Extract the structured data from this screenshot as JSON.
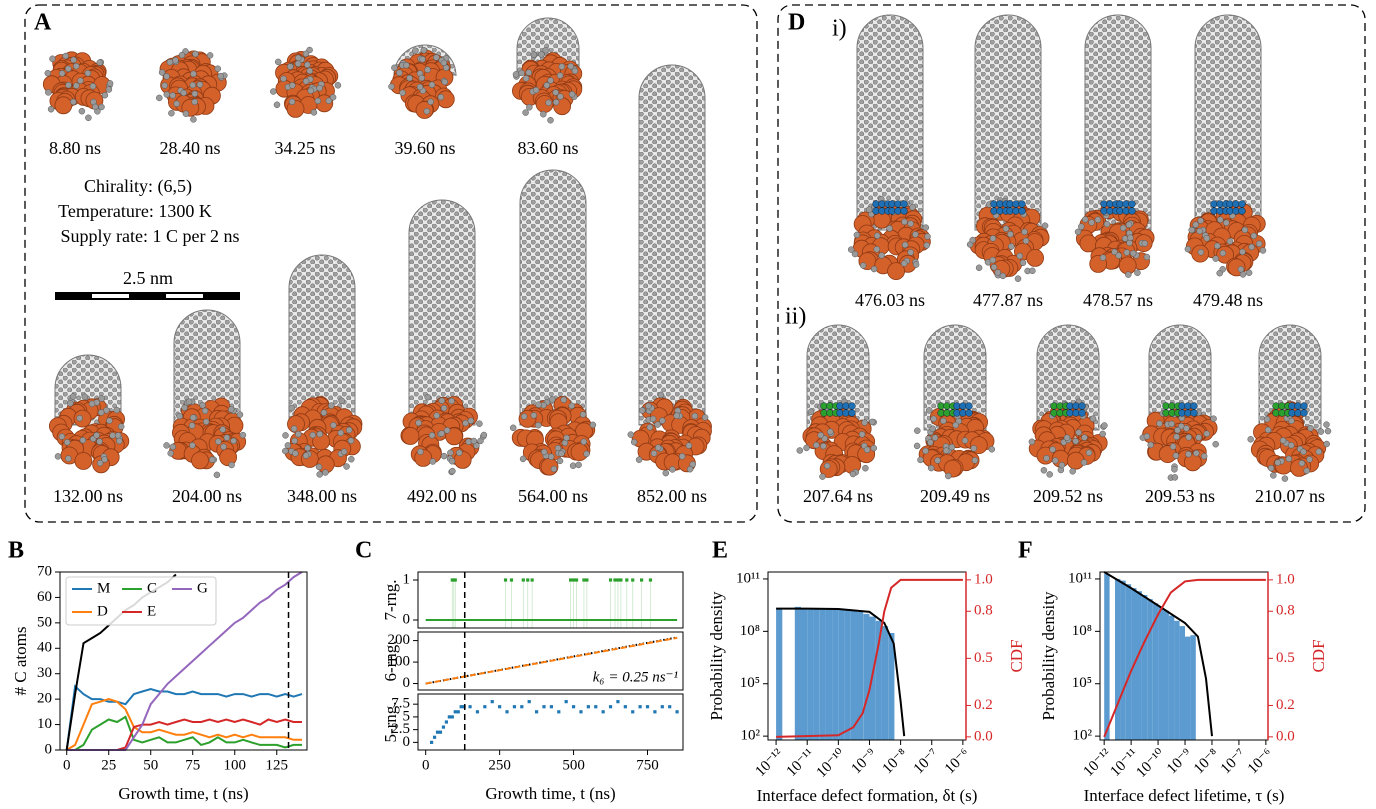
{
  "panel_a": {
    "label": "A",
    "top_times": [
      "8.80 ns",
      "28.40 ns",
      "34.25 ns",
      "39.60 ns",
      "83.60 ns"
    ],
    "bottom_times": [
      "132.00 ns",
      "204.00 ns",
      "348.00 ns",
      "492.00 ns",
      "564.00 ns",
      "852.00 ns"
    ],
    "info": [
      "Chirality: (6,5)",
      "Temperature: 1300 K",
      "Supply rate: 1 C per 2 ns"
    ],
    "scale_bar": "2.5 nm"
  },
  "panel_d": {
    "label": "D",
    "row_i": {
      "label": "i)",
      "times": [
        "476.03 ns",
        "477.87 ns",
        "478.57 ns",
        "479.48 ns"
      ]
    },
    "row_ii": {
      "label": "ii)",
      "times": [
        "207.64 ns",
        "209.49 ns",
        "209.52 ns",
        "209.53 ns",
        "210.07 ns"
      ]
    }
  },
  "chart_data": [
    {
      "type": "line",
      "panel": "B",
      "xlabel": "Growth time, t (ns)",
      "ylabel": "# C atoms",
      "x": [
        0,
        5,
        10,
        15,
        20,
        25,
        30,
        35,
        40,
        45,
        50,
        55,
        60,
        65,
        70,
        75,
        80,
        85,
        90,
        95,
        100,
        105,
        110,
        115,
        120,
        125,
        130,
        135,
        140
      ],
      "xlim": [
        -4,
        143
      ],
      "xticks": [
        0,
        25,
        50,
        75,
        100,
        125
      ],
      "ylim": [
        0,
        70
      ],
      "yticks": [
        0,
        10,
        20,
        30,
        40,
        50,
        60,
        70
      ],
      "vline": 132,
      "legend": "upper left",
      "series": [
        {
          "name": "M",
          "color": "#1f77b4",
          "values": [
            0,
            25,
            22,
            20,
            20,
            19,
            19,
            18,
            22,
            23,
            24,
            23,
            23,
            22,
            22,
            23,
            22,
            22,
            22,
            21,
            22,
            22,
            21,
            22,
            22,
            21,
            22,
            21,
            22
          ]
        },
        {
          "name": "D",
          "color": "#ff7f0e",
          "values": [
            0,
            2,
            10,
            18,
            19,
            20,
            19,
            16,
            9,
            7,
            7,
            8,
            7,
            6,
            6,
            7,
            6,
            5,
            6,
            5,
            6,
            5,
            6,
            5,
            5,
            5,
            5,
            4,
            4
          ]
        },
        {
          "name": "C",
          "color": "#2ca02c",
          "values": [
            0,
            0,
            2,
            8,
            10,
            12,
            11,
            13,
            4,
            3,
            4,
            5,
            3,
            3,
            4,
            5,
            2,
            3,
            5,
            3,
            3,
            4,
            3,
            2,
            2,
            2,
            1,
            2,
            2
          ]
        },
        {
          "name": "E",
          "color": "#d62728",
          "values": [
            0,
            0,
            0,
            0,
            0,
            0,
            0,
            1,
            9,
            10,
            10,
            11,
            10,
            11,
            12,
            11,
            11,
            12,
            11,
            12,
            11,
            12,
            11,
            10,
            12,
            11,
            12,
            11,
            11
          ]
        },
        {
          "name": "G",
          "color": "#9467bd",
          "values": [
            0,
            0,
            0,
            0,
            0,
            0,
            0,
            0,
            5,
            10,
            18,
            22,
            26,
            29,
            32,
            35,
            38,
            41,
            44,
            47,
            50,
            52,
            55,
            58,
            60,
            63,
            65,
            68,
            70
          ]
        },
        {
          "color": "#000000",
          "values": [
            0,
            22,
            42,
            44,
            46,
            49,
            52,
            55,
            57,
            60,
            62,
            64,
            66,
            69,
            null,
            null,
            null,
            null,
            null,
            null,
            null,
            null,
            null,
            null,
            null,
            null,
            null,
            null,
            null
          ]
        }
      ]
    },
    {
      "type": "scatter",
      "panel": "C",
      "xlabel": "Growth time, t (ns)",
      "xlim": [
        -26,
        870
      ],
      "xticks": [
        0,
        250,
        500,
        750
      ],
      "vline": 132,
      "subplots": [
        {
          "ylabel": "7-rng.",
          "ylim": [
            -0.2,
            1.2
          ],
          "yticks": [
            0,
            1
          ],
          "series": [
            {
              "color": "#2ca02c",
              "style": "points",
              "x": [
                90,
                95,
                100,
                270,
                290,
                330,
                345,
                360,
                490,
                500,
                510,
                535,
                545,
                625,
                640,
                650,
                660,
                680,
                700,
                730,
                760
              ],
              "values": [
                1,
                1,
                1,
                1,
                1,
                1,
                1,
                1,
                1,
                1,
                1,
                1,
                1,
                1,
                1,
                1,
                1,
                1,
                1,
                1,
                1
              ]
            },
            {
              "color": "#2ca02c",
              "style": "solid",
              "x": [
                0,
                850
              ],
              "values": [
                0,
                0
              ]
            }
          ]
        },
        {
          "ylabel": "6-rng.",
          "ylim": [
            -30,
            240
          ],
          "yticks": [
            0,
            100,
            200
          ],
          "annotation": "k₆ = 0.25 ns⁻¹",
          "series": [
            {
              "color": "#000000",
              "style": "dotted",
              "x": [
                0,
                850
              ],
              "values": [
                0,
                215
              ]
            },
            {
              "color": "#ff7f0e",
              "style": "dashed",
              "x": [
                0,
                850
              ],
              "values": [
                0,
                212.5
              ]
            }
          ]
        },
        {
          "ylabel": "5-rng.",
          "ylim": [
            -1.5,
            9.5
          ],
          "yticks": [
            0,
            2.5,
            5,
            7.5
          ],
          "series": [
            {
              "color": "#1f77b4",
              "style": "points",
              "x": [
                20,
                30,
                40,
                50,
                60,
                70,
                80,
                90,
                100,
                110,
                120,
                130,
                150,
                175,
                200,
                225,
                250,
                275,
                300,
                325,
                350,
                375,
                400,
                425,
                450,
                475,
                500,
                525,
                550,
                575,
                600,
                625,
                650,
                675,
                700,
                725,
                750,
                775,
                800,
                825,
                850
              ],
              "values": [
                0,
                1,
                2,
                2,
                3,
                4,
                5,
                5,
                6,
                6,
                7,
                7,
                7,
                6,
                7,
                8,
                7,
                6,
                7,
                7,
                8,
                6,
                7,
                7,
                6,
                8,
                7,
                6,
                7,
                7,
                6,
                7,
                8,
                7,
                6,
                7,
                7,
                6,
                7,
                7,
                6
              ]
            }
          ]
        }
      ]
    },
    {
      "type": "histogram",
      "panel": "E",
      "xlabel": "Interface defect formation, δt (s)",
      "ylabel": "Probability density",
      "y2label": "CDF",
      "xscale": "log",
      "yscale": "log",
      "xlim": [
        5.5e-13,
        1.26e-06
      ],
      "xticks": [
        {
          "value": 1e-12,
          "label": "10⁻¹²"
        },
        {
          "value": 1e-11,
          "label": "10⁻¹¹"
        },
        {
          "value": 1e-10,
          "label": "10⁻¹⁰"
        },
        {
          "value": 1e-09,
          "label": "10⁻⁹"
        },
        {
          "value": 1e-08,
          "label": "10⁻⁸"
        },
        {
          "value": 1e-07,
          "label": "10⁻⁷"
        },
        {
          "value": 1e-06,
          "label": "10⁻⁶"
        }
      ],
      "ylim": [
        60,
        250000000000.0
      ],
      "yticks": [
        {
          "value": 100,
          "label": "10²"
        },
        {
          "value": 100000.0,
          "label": "10⁵"
        },
        {
          "value": 100000000.0,
          "label": "10⁸"
        },
        {
          "value": 100000000000.0,
          "label": "10¹¹"
        }
      ],
      "y2lim": [
        -0.02,
        1.05
      ],
      "y2ticks": [
        {
          "value": 0,
          "label": "0.0"
        },
        0.2,
        0.5,
        0.8,
        {
          "value": 1,
          "label": "1.0"
        }
      ],
      "color": "#5b9bd0",
      "bins": [
        1e-12,
        1.585e-12,
        2.512e-12,
        3.981e-12,
        6.31e-12,
        1e-11,
        1.585e-11,
        2.512e-11,
        3.981e-11,
        6.31e-11,
        1e-10,
        1.585e-10,
        2.512e-10,
        3.981e-10,
        6.31e-10,
        1e-09,
        1.585e-09,
        2.512e-09,
        3.981e-09,
        6.31e-09
      ],
      "values": [
        2000000000.0,
        0,
        0,
        2500000000.0,
        2000000000.0,
        2000000000.0,
        2000000000.0,
        2000000000.0,
        2000000000.0,
        2000000000.0,
        2000000000.0,
        1800000000.0,
        1600000000.0,
        1300000000.0,
        1000000000.0,
        700000000.0,
        400000000.0,
        200000000.0,
        80000000.0
      ],
      "series": [
        {
          "color": "#000000",
          "x": [
            1e-12,
            1e-11,
            1e-10,
            1e-09,
            3e-09,
            6e-09,
            1e-08,
            1.3e-08
          ],
          "values": [
            2000000000.0,
            2000000000.0,
            1900000000.0,
            1300000000.0,
            300000000.0,
            20000000.0,
            10000.0,
            100
          ]
        },
        {
          "color": "#d62728",
          "axis": "y2",
          "x": [
            1e-12,
            1e-10,
            3e-10,
            6e-10,
            1e-09,
            2e-09,
            3e-09,
            5e-09,
            1e-08,
            1e-06
          ],
          "values": [
            0,
            0.01,
            0.06,
            0.15,
            0.3,
            0.6,
            0.8,
            0.95,
            1,
            1
          ]
        }
      ]
    },
    {
      "type": "histogram",
      "panel": "F",
      "xlabel": "Interface defect lifetime, τ (s)",
      "ylabel": "Probability density",
      "y2label": "CDF",
      "xscale": "log",
      "yscale": "log",
      "xlim": [
        7e-13,
        1.2e-06
      ],
      "xticks": [
        {
          "value": 1e-12,
          "label": "10⁻¹²"
        },
        {
          "value": 1e-11,
          "label": "10⁻¹¹"
        },
        {
          "value": 1e-10,
          "label": "10⁻¹⁰"
        },
        {
          "value": 1e-09,
          "label": "10⁻⁹"
        },
        {
          "value": 1e-08,
          "label": "10⁻⁸"
        },
        {
          "value": 1e-07,
          "label": "10⁻⁷"
        },
        {
          "value": 1e-06,
          "label": "10⁻⁶"
        }
      ],
      "ylim": [
        60,
        250000000000.0
      ],
      "yticks": [
        {
          "value": 100,
          "label": "10²"
        },
        {
          "value": 100000.0,
          "label": "10⁵"
        },
        {
          "value": 100000000.0,
          "label": "10⁸"
        },
        {
          "value": 100000000000.0,
          "label": "10¹¹"
        }
      ],
      "y2lim": [
        -0.02,
        1.05
      ],
      "y2ticks": [
        {
          "value": 0,
          "label": "0.0"
        },
        0.2,
        0.5,
        0.8,
        {
          "value": 1,
          "label": "1.0"
        }
      ],
      "color": "#5b9bd0",
      "bins": [
        1e-12,
        1.585e-12,
        2.512e-12,
        3.981e-12,
        6.31e-12,
        1e-11,
        1.585e-11,
        2.512e-11,
        3.981e-11,
        6.31e-11,
        1e-10,
        1.585e-10,
        2.512e-10,
        3.981e-10,
        6.31e-10,
        1e-09,
        1.585e-09,
        2.512e-09
      ],
      "values": [
        200000000000.0,
        0,
        100000000000.0,
        80000000000.0,
        50000000000.0,
        30000000000.0,
        20000000000.0,
        12000000000.0,
        7000000000.0,
        4000000000.0,
        2500000000.0,
        1500000000.0,
        800000000.0,
        400000000.0,
        200000000.0,
        50000000.0,
        60000000.0
      ],
      "series": [
        {
          "color": "#000000",
          "x": [
            1e-12,
            1e-11,
            1e-10,
            1e-09,
            3e-09,
            6e-09,
            1e-08
          ],
          "values": [
            250000000000.0,
            30000000000.0,
            3000000000.0,
            300000000.0,
            50000000.0,
            200000.0,
            100
          ]
        },
        {
          "color": "#d62728",
          "axis": "y2",
          "x": [
            1e-12,
            3e-12,
            1e-11,
            3e-11,
            1e-10,
            3e-10,
            1e-09,
            3e-09,
            1e-06
          ],
          "values": [
            0,
            0.2,
            0.42,
            0.6,
            0.78,
            0.92,
            0.99,
            1,
            1
          ]
        }
      ]
    }
  ]
}
